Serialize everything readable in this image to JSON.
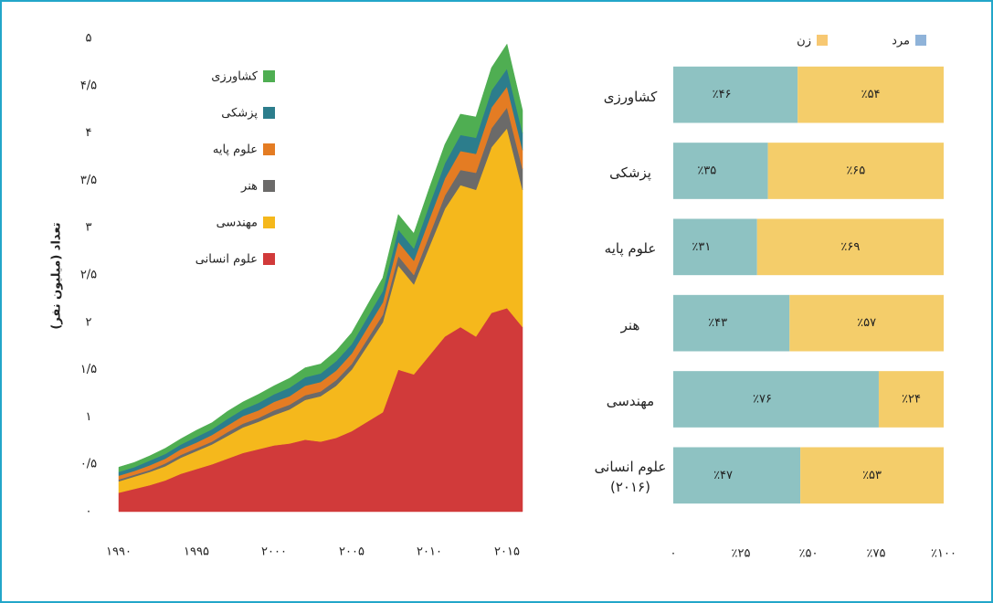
{
  "chart_data": [
    {
      "type": "area",
      "y_label": "تعداد (میلیون نفر)",
      "x": [
        1990,
        1991,
        1992,
        1993,
        1994,
        1995,
        1996,
        1997,
        1998,
        1999,
        2000,
        2001,
        2002,
        2003,
        2004,
        2005,
        2006,
        2007,
        2008,
        2009,
        2010,
        2011,
        2012,
        2013,
        2014,
        2015,
        2016
      ],
      "xlim": [
        1990,
        2016
      ],
      "xticks": [
        {
          "value": 1990,
          "label": "۱۹۹۰"
        },
        {
          "value": 1995,
          "label": "۱۹۹۵"
        },
        {
          "value": 2000,
          "label": "۲۰۰۰"
        },
        {
          "value": 2005,
          "label": "۲۰۰۵"
        },
        {
          "value": 2010,
          "label": "۲۰۱۰"
        },
        {
          "value": 2015,
          "label": "۲۰۱۵"
        }
      ],
      "ylim": [
        0,
        5
      ],
      "yticks": [
        {
          "value": 0,
          "label": "۰"
        },
        {
          "value": 0.5,
          "label": "۰/۵"
        },
        {
          "value": 1,
          "label": "۱"
        },
        {
          "value": 1.5,
          "label": "۱/۵"
        },
        {
          "value": 2,
          "label": "۲"
        },
        {
          "value": 2.5,
          "label": "۲/۵"
        },
        {
          "value": 3,
          "label": "۳"
        },
        {
          "value": 3.5,
          "label": "۳/۵"
        },
        {
          "value": 4,
          "label": "۴"
        },
        {
          "value": 4.5,
          "label": "۴/۵"
        },
        {
          "value": 5,
          "label": "۵"
        }
      ],
      "series": [
        {
          "name": "علوم انسانی",
          "color": "#d13a3a",
          "values": [
            0.2,
            0.24,
            0.28,
            0.33,
            0.4,
            0.45,
            0.5,
            0.56,
            0.62,
            0.66,
            0.7,
            0.72,
            0.76,
            0.74,
            0.78,
            0.85,
            0.95,
            1.05,
            1.5,
            1.45,
            1.65,
            1.85,
            1.95,
            1.85,
            2.1,
            2.15,
            1.95
          ]
        },
        {
          "name": "مهندسی",
          "color": "#f5b81c",
          "values": [
            0.12,
            0.13,
            0.14,
            0.15,
            0.17,
            0.19,
            0.21,
            0.24,
            0.27,
            0.29,
            0.32,
            0.36,
            0.42,
            0.48,
            0.55,
            0.65,
            0.8,
            0.95,
            1.1,
            0.95,
            1.15,
            1.35,
            1.5,
            1.55,
            1.75,
            1.9,
            1.45
          ]
        },
        {
          "name": "هنر",
          "color": "#6b6a69",
          "values": [
            0.02,
            0.02,
            0.02,
            0.03,
            0.03,
            0.03,
            0.03,
            0.04,
            0.04,
            0.04,
            0.05,
            0.05,
            0.05,
            0.05,
            0.06,
            0.06,
            0.07,
            0.08,
            0.1,
            0.1,
            0.12,
            0.14,
            0.16,
            0.18,
            0.2,
            0.22,
            0.22
          ]
        },
        {
          "name": "علوم پایه",
          "color": "#e47c23",
          "values": [
            0.04,
            0.04,
            0.05,
            0.05,
            0.06,
            0.06,
            0.07,
            0.07,
            0.08,
            0.08,
            0.09,
            0.09,
            0.1,
            0.1,
            0.1,
            0.11,
            0.12,
            0.13,
            0.15,
            0.15,
            0.17,
            0.18,
            0.2,
            0.2,
            0.22,
            0.22,
            0.2
          ]
        },
        {
          "name": "پزشکی",
          "color": "#2c7d8c",
          "values": [
            0.04,
            0.04,
            0.05,
            0.05,
            0.05,
            0.06,
            0.06,
            0.07,
            0.07,
            0.08,
            0.08,
            0.09,
            0.09,
            0.09,
            0.1,
            0.1,
            0.11,
            0.12,
            0.13,
            0.13,
            0.15,
            0.16,
            0.17,
            0.17,
            0.18,
            0.19,
            0.18
          ]
        },
        {
          "name": "کشاورزی",
          "color": "#4fae52",
          "values": [
            0.05,
            0.05,
            0.05,
            0.06,
            0.06,
            0.07,
            0.07,
            0.08,
            0.08,
            0.09,
            0.09,
            0.1,
            0.1,
            0.1,
            0.11,
            0.12,
            0.13,
            0.14,
            0.16,
            0.16,
            0.18,
            0.2,
            0.22,
            0.22,
            0.24,
            0.26,
            0.24
          ]
        }
      ]
    },
    {
      "type": "bar",
      "categories": [
        "کشاورزی",
        "پزشکی",
        "علوم پایه",
        "هنر",
        "مهندسی",
        "علوم انسانی (۲۰۱۶)"
      ],
      "xlim": [
        0,
        100
      ],
      "xticks": [
        {
          "value": 0,
          "label": "۰"
        },
        {
          "value": 25,
          "label": "٪۲۵"
        },
        {
          "value": 50,
          "label": "٪۵۰"
        },
        {
          "value": 75,
          "label": "٪۷۵"
        },
        {
          "value": 100,
          "label": "٪۱۰۰"
        }
      ],
      "series": [
        {
          "name": "مرد",
          "color": "#8ec2c2",
          "legend_color": "#8fb3d9",
          "values": [
            46,
            35,
            31,
            43,
            76,
            47
          ],
          "value_labels": [
            "٪۴۶",
            "٪۳۵",
            "٪۳۱",
            "٪۴۳",
            "٪۷۶",
            "٪۴۷"
          ]
        },
        {
          "name": "زن",
          "color": "#f4cd6a",
          "legend_color": "#f7c872",
          "values": [
            54,
            65,
            69,
            57,
            24,
            53
          ],
          "value_labels": [
            "٪۵۴",
            "٪۶۵",
            "٪۶۹",
            "٪۵۷",
            "٪۲۴",
            "٪۵۳"
          ]
        }
      ]
    }
  ]
}
